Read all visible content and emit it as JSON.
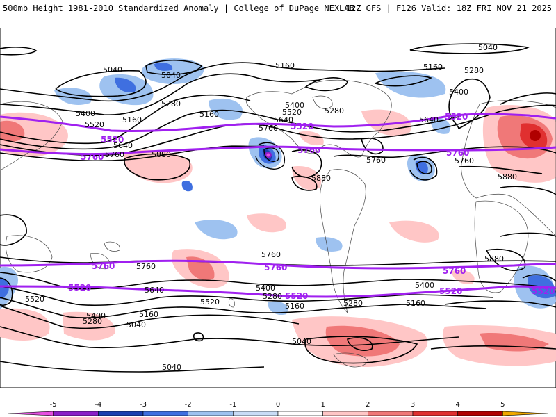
{
  "header": {
    "left": "500mb Height 1981-2010 Standardized Anomaly | College of DuPage NEXLAB",
    "right": "12Z GFS | F126 Valid: 18Z FRI NOV 21 2025"
  },
  "colorbar": {
    "ticks": [
      "-5",
      "-4",
      "-3",
      "-2",
      "-1",
      "0",
      "1",
      "2",
      "3",
      "4",
      "5"
    ],
    "colors": [
      "#e54fe0",
      "#8a1fc8",
      "#1a3fb0",
      "#3f6fe0",
      "#9ec2f0",
      "#c9dcf6",
      "#ffffff",
      "#ffc6c6",
      "#f07878",
      "#e03030",
      "#b00000",
      "#f0a800"
    ]
  },
  "height_labels": {
    "black": [
      "5040",
      "5040",
      "5040",
      "5040",
      "5040",
      "5040",
      "5160",
      "5160",
      "5160",
      "5160",
      "5160",
      "5160",
      "5280",
      "5280",
      "5280",
      "5280",
      "5280",
      "5400",
      "5400",
      "5400",
      "5400",
      "5400",
      "5400",
      "5520",
      "5520",
      "5520",
      "5520",
      "5640",
      "5640",
      "5640",
      "5640",
      "5760",
      "5760",
      "5760",
      "5760",
      "5760",
      "5760",
      "5880",
      "5880",
      "5880",
      "5880",
      "5280",
      "5160"
    ],
    "purple": [
      "5520",
      "5520",
      "5520",
      "5760",
      "5760",
      "5760",
      "5760",
      "5760",
      "5760",
      "5520",
      "5520",
      "5520",
      "5520",
      "5520"
    ]
  }
}
